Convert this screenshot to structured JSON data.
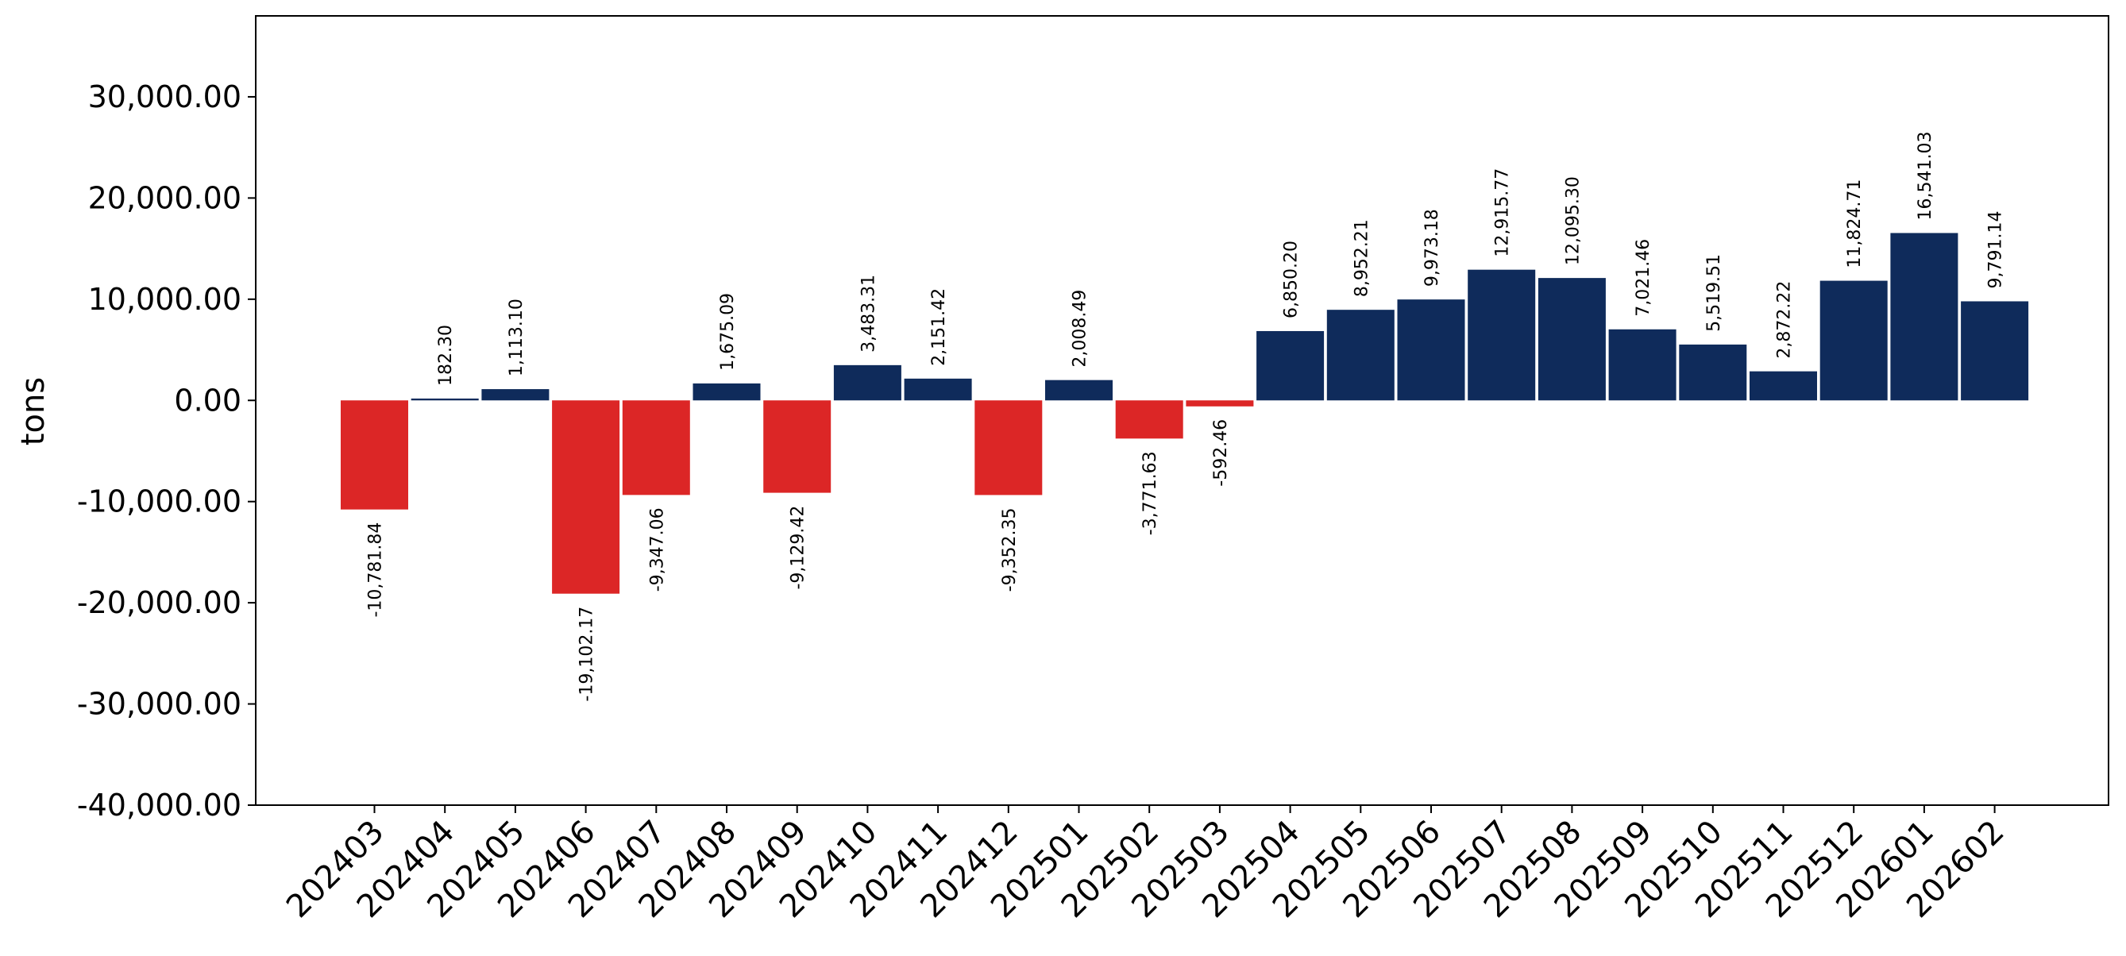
{
  "chart_data": {
    "type": "bar",
    "title": "",
    "xlabel": "",
    "ylabel": "tons",
    "ylim": [
      -40000,
      38000
    ],
    "yticks": [
      30000,
      20000,
      10000,
      0,
      -10000,
      -20000,
      -30000,
      -40000
    ],
    "ytick_labels": [
      "30,000.00",
      "20,000.00",
      "10,000.00",
      "0.00",
      "-10,000.00",
      "-20,000.00",
      "-30,000.00",
      "-40,000.00"
    ],
    "grid": false,
    "legend": "none",
    "colors": {
      "positive": "#0f2b5b",
      "negative": "#dc2626"
    },
    "categories": [
      "202403",
      "202404",
      "202405",
      "202406",
      "202407",
      "202408",
      "202409",
      "202410",
      "202411",
      "202412",
      "202501",
      "202502",
      "202503",
      "202504",
      "202505",
      "202506",
      "202507",
      "202508",
      "202509",
      "202510",
      "202511",
      "202512",
      "202601",
      "202602"
    ],
    "values": [
      -10781.84,
      182.3,
      1113.1,
      -19102.17,
      -9347.06,
      1675.09,
      -9129.42,
      3483.31,
      2151.42,
      -9352.35,
      2008.49,
      -3771.63,
      -592.46,
      6850.2,
      8952.21,
      9973.18,
      12915.77,
      12095.3,
      7021.46,
      5519.51,
      2872.22,
      11824.71,
      16541.03,
      9791.14
    ],
    "value_labels": [
      "-10,781.84",
      "182.30",
      "1,113.10",
      "-19,102.17",
      "-9,347.06",
      "1,675.09",
      "-9,129.42",
      "3,483.31",
      "2,151.42",
      "-9,352.35",
      "2,008.49",
      "-3,771.63",
      "-592.46",
      "6,850.20",
      "8,952.21",
      "9,973.18",
      "12,915.77",
      "12,095.30",
      "7,021.46",
      "5,519.51",
      "2,872.22",
      "11,824.71",
      "16,541.03",
      "9,791.14"
    ]
  }
}
